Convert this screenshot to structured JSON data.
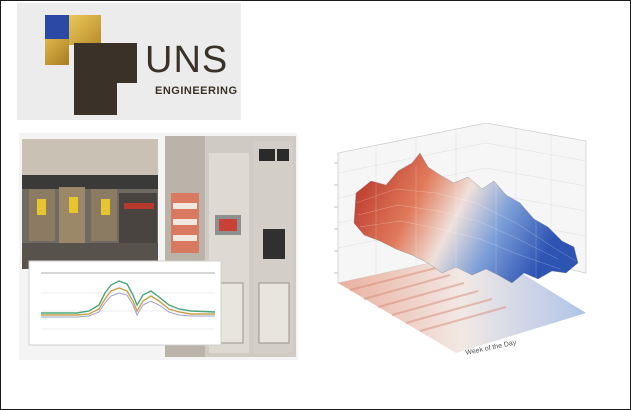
{
  "logo": {
    "brand": "UNS",
    "subtitle": "ENGINEERING"
  },
  "colors": {
    "logo_blue": "#2b4aa6",
    "logo_gold": "#d4a73d",
    "logo_dark": "#3a3228",
    "heat_red": "#c7322b",
    "heat_blue": "#4d74c9"
  },
  "surface_plot": {
    "xlabel": "Week of the Day"
  }
}
